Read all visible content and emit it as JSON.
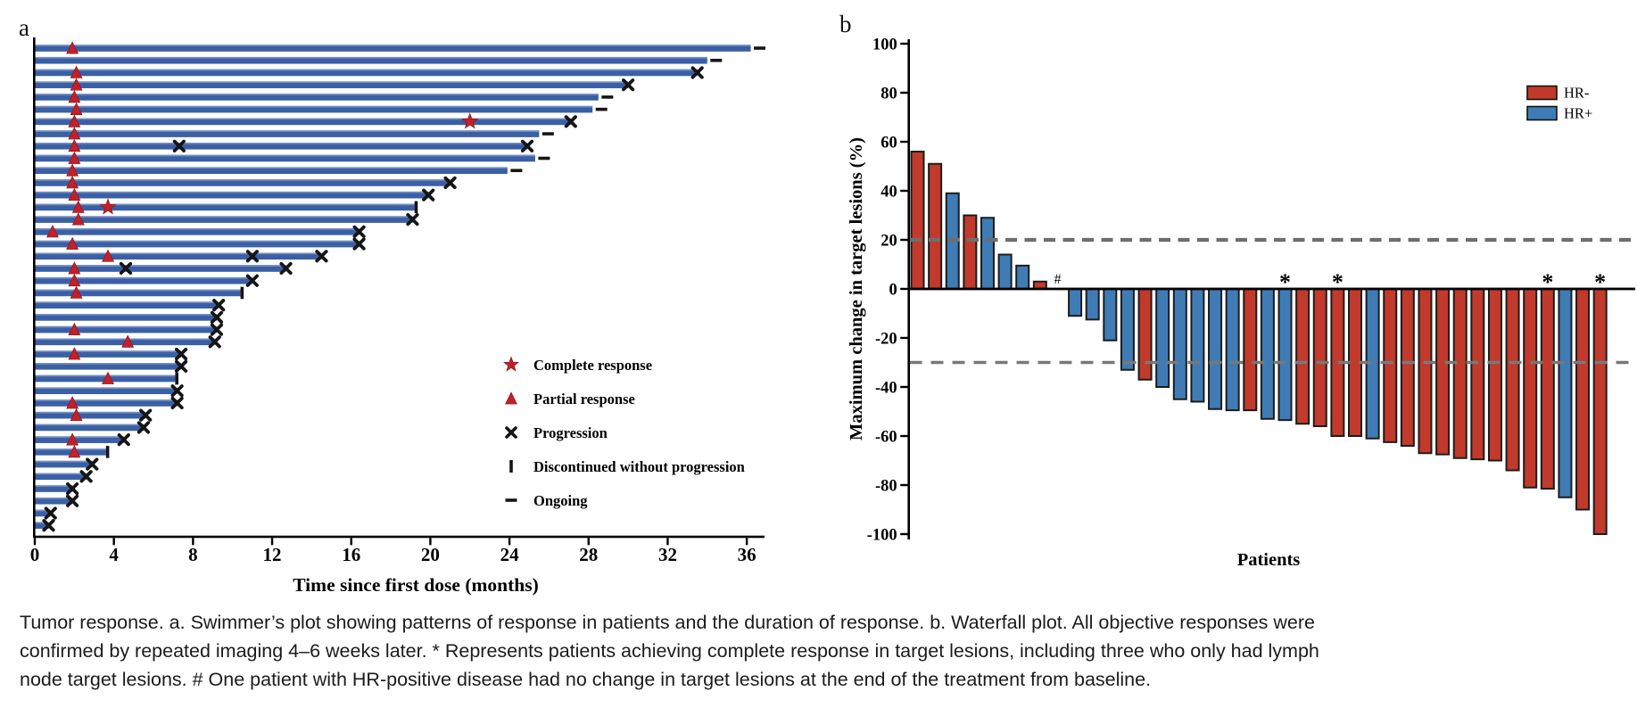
{
  "panels": {
    "a_label": "a",
    "b_label": "b"
  },
  "caption": {
    "lines": [
      "Tumor response. a. Swimmer’s plot showing patterns of response in patients and the duration of response. b. Waterfall plot. All objective responses were",
      "confirmed by repeated imaging 4–6 weeks later. * Represents patients achieving complete response in target lesions, including three who only had lymph",
      "node target lesions. # One patient with HR-positive disease had no change in target lesions at the end of the treatment from baseline."
    ]
  },
  "colors": {
    "swimmer_bar": "#3A5FA4",
    "swimmer_bar_highlight": "#7E97C6",
    "response_red": "#C2202A",
    "marker_black": "#151515",
    "hr_negative": "#C13A2B",
    "hr_positive": "#3F7CB6",
    "dashed_gray": "#6E6E6E",
    "axis_black": "#000000"
  },
  "chart_data": [
    {
      "id": "swimmer",
      "type": "bar",
      "title": "Swimmer plot of duration of response",
      "xlabel": "Time since first dose (months)",
      "x_ticks": [
        0,
        4,
        8,
        12,
        16,
        20,
        24,
        28,
        32,
        36
      ],
      "xlim": [
        0,
        37
      ],
      "grid": false,
      "legend_position": "lower-right-inside",
      "legend": [
        {
          "symbol": "star",
          "label": "Complete response"
        },
        {
          "symbol": "triangle",
          "label": "Partial response"
        },
        {
          "symbol": "x",
          "label": "Progression"
        },
        {
          "symbol": "vbar",
          "label": "Discontinued without progression"
        },
        {
          "symbol": "dash",
          "label": "Ongoing"
        }
      ],
      "patients": [
        {
          "duration": 36.2,
          "end": "ongoing",
          "pr_month": 1.9
        },
        {
          "duration": 34.0,
          "end": "ongoing"
        },
        {
          "duration": 33.5,
          "end": "progression",
          "pr_month": 2.1
        },
        {
          "duration": 30.0,
          "end": "progression",
          "pr_month": 2.1
        },
        {
          "duration": 28.5,
          "end": "ongoing",
          "pr_month": 2.0
        },
        {
          "duration": 28.2,
          "end": "ongoing",
          "pr_month": 2.1
        },
        {
          "duration": 27.1,
          "end": "progression",
          "pr_month": 2.0,
          "cr_month": 22.0
        },
        {
          "duration": 25.5,
          "end": "ongoing",
          "pr_month": 2.0
        },
        {
          "duration": 24.9,
          "end": "progression",
          "pr_month": 2.0,
          "progression_marks": [
            7.3
          ]
        },
        {
          "duration": 25.3,
          "end": "ongoing",
          "pr_month": 2.0
        },
        {
          "duration": 23.9,
          "end": "ongoing",
          "pr_month": 1.9
        },
        {
          "duration": 21.0,
          "end": "progression",
          "pr_month": 1.9
        },
        {
          "duration": 19.9,
          "end": "progression",
          "pr_month": 2.0
        },
        {
          "duration": 19.2,
          "end": "discontinued",
          "pr_month": 2.2,
          "cr_month": 3.7
        },
        {
          "duration": 19.1,
          "end": "progression",
          "pr_month": 2.2
        },
        {
          "duration": 16.4,
          "end": "progression",
          "pr_month": 0.9
        },
        {
          "duration": 16.4,
          "end": "progression",
          "pr_month": 1.9
        },
        {
          "duration": 14.5,
          "end": "progression",
          "pr_month": 3.7,
          "progression_marks": [
            11.0
          ]
        },
        {
          "duration": 12.7,
          "end": "progression",
          "pr_month": 2.0,
          "progression_marks": [
            4.6
          ]
        },
        {
          "duration": 11.0,
          "end": "progression",
          "pr_month": 2.0
        },
        {
          "duration": 10.4,
          "end": "discontinued",
          "pr_month": 2.1
        },
        {
          "duration": 9.3,
          "end": "progression"
        },
        {
          "duration": 9.2,
          "end": "progression"
        },
        {
          "duration": 9.2,
          "end": "progression",
          "pr_month": 2.0
        },
        {
          "duration": 9.1,
          "end": "progression",
          "pr_month": 4.7
        },
        {
          "duration": 7.4,
          "end": "progression",
          "pr_month": 2.0
        },
        {
          "duration": 7.4,
          "end": "progression"
        },
        {
          "duration": 7.1,
          "end": "discontinued",
          "pr_month": 3.7
        },
        {
          "duration": 7.2,
          "end": "progression"
        },
        {
          "duration": 7.2,
          "end": "progression",
          "pr_month": 1.9
        },
        {
          "duration": 5.6,
          "end": "progression",
          "pr_month": 2.1
        },
        {
          "duration": 5.5,
          "end": "progression"
        },
        {
          "duration": 4.5,
          "end": "progression",
          "pr_month": 1.9
        },
        {
          "duration": 3.6,
          "end": "discontinued",
          "pr_month": 2.0
        },
        {
          "duration": 2.9,
          "end": "progression"
        },
        {
          "duration": 2.6,
          "end": "progression"
        },
        {
          "duration": 1.9,
          "end": "progression"
        },
        {
          "duration": 1.9,
          "end": "progression"
        },
        {
          "duration": 0.8,
          "end": "progression"
        },
        {
          "duration": 0.7,
          "end": "progression"
        }
      ]
    },
    {
      "id": "waterfall",
      "type": "bar",
      "title": "Waterfall plot of maximum change in target lesions",
      "xlabel": "Patients",
      "ylabel": "Maximum change in target lesions (%)",
      "ylim": [
        -100,
        100
      ],
      "y_ticks": [
        100,
        80,
        60,
        40,
        20,
        0,
        -20,
        -40,
        -60,
        -80,
        -100
      ],
      "reference_lines": [
        20,
        -30
      ],
      "grid": false,
      "legend_position": "upper-right-inside",
      "legend": [
        {
          "label": "HR-",
          "group": "HR-"
        },
        {
          "label": "HR+",
          "group": "HR+"
        }
      ],
      "bars": [
        {
          "value": 56,
          "group": "HR-"
        },
        {
          "value": 51,
          "group": "HR-"
        },
        {
          "value": 39,
          "group": "HR+"
        },
        {
          "value": 30,
          "group": "HR-"
        },
        {
          "value": 29,
          "group": "HR+"
        },
        {
          "value": 14,
          "group": "HR+"
        },
        {
          "value": 9.5,
          "group": "HR+"
        },
        {
          "value": 3,
          "group": "HR-"
        },
        {
          "value": 0,
          "group": "HR+",
          "mark": "#"
        },
        {
          "value": -11,
          "group": "HR+"
        },
        {
          "value": -12.5,
          "group": "HR+"
        },
        {
          "value": -21,
          "group": "HR+"
        },
        {
          "value": -33,
          "group": "HR+"
        },
        {
          "value": -37,
          "group": "HR-"
        },
        {
          "value": -40,
          "group": "HR+"
        },
        {
          "value": -45,
          "group": "HR+"
        },
        {
          "value": -46,
          "group": "HR+"
        },
        {
          "value": -49,
          "group": "HR+"
        },
        {
          "value": -49.5,
          "group": "HR+"
        },
        {
          "value": -49.5,
          "group": "HR-"
        },
        {
          "value": -53,
          "group": "HR+"
        },
        {
          "value": -53.5,
          "group": "HR+",
          "mark": "*"
        },
        {
          "value": -55,
          "group": "HR-"
        },
        {
          "value": -56,
          "group": "HR-"
        },
        {
          "value": -60,
          "group": "HR-",
          "mark": "*"
        },
        {
          "value": -60,
          "group": "HR-"
        },
        {
          "value": -61,
          "group": "HR+"
        },
        {
          "value": -62.5,
          "group": "HR-"
        },
        {
          "value": -64,
          "group": "HR-"
        },
        {
          "value": -67,
          "group": "HR-"
        },
        {
          "value": -67.5,
          "group": "HR-"
        },
        {
          "value": -69,
          "group": "HR-"
        },
        {
          "value": -69.5,
          "group": "HR-"
        },
        {
          "value": -70,
          "group": "HR-"
        },
        {
          "value": -74,
          "group": "HR-"
        },
        {
          "value": -81,
          "group": "HR-"
        },
        {
          "value": -81.5,
          "group": "HR-",
          "mark": "*"
        },
        {
          "value": -85,
          "group": "HR+"
        },
        {
          "value": -90,
          "group": "HR-"
        },
        {
          "value": -100,
          "group": "HR-",
          "mark": "*"
        }
      ]
    }
  ]
}
